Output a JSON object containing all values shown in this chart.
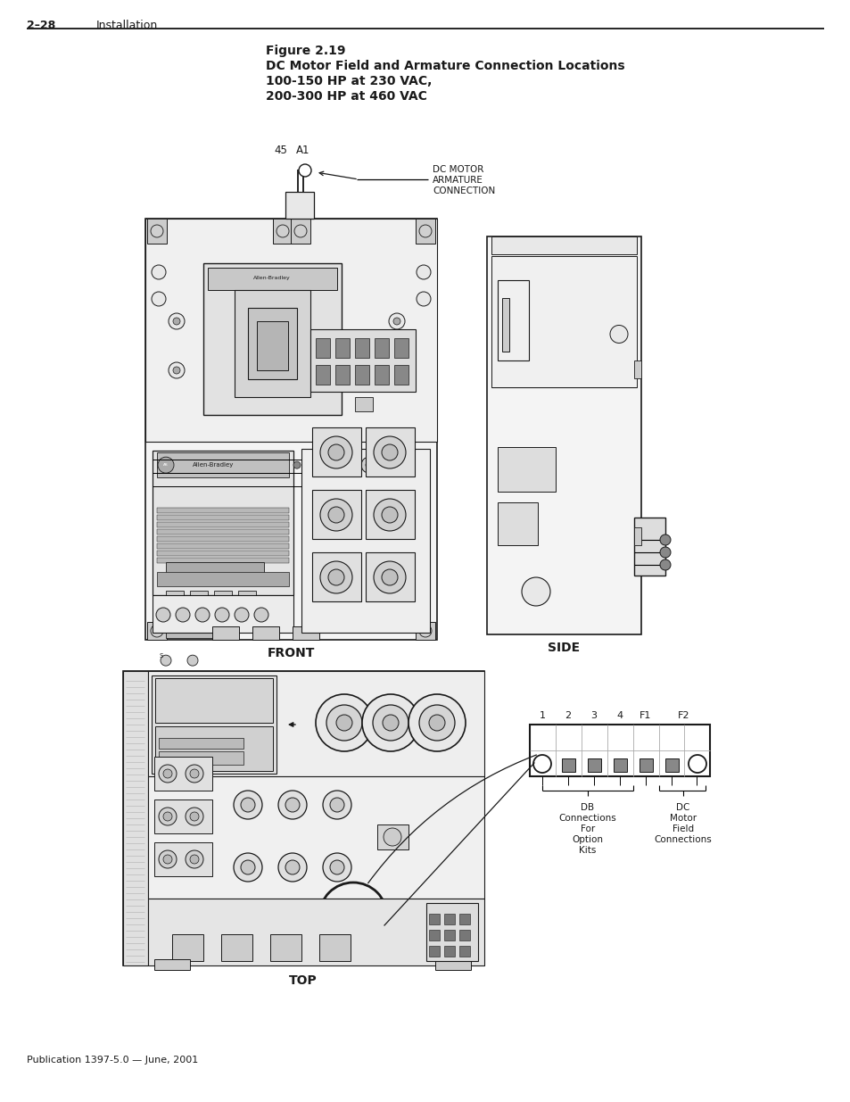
{
  "page_header_number": "2–28",
  "page_header_text": "Installation",
  "figure_title_line1": "Figure 2.19",
  "figure_title_line2": "DC Motor Field and Armature Connection Locations",
  "figure_title_line3": "100-150 HP at 230 VAC,",
  "figure_title_line4": "200-300 HP at 460 VAC",
  "front_label": "FRONT",
  "side_label": "SIDE",
  "top_label": "TOP",
  "label_45": "45",
  "label_A1": "A1",
  "dc_motor_line1": "DC MOTOR",
  "dc_motor_line2": "ARMATURE",
  "dc_motor_line3": "CONNECTION",
  "terminal_labels": [
    "1",
    "2",
    "3",
    "4",
    "F1",
    "F2"
  ],
  "db_connections_lines": [
    "DB",
    "Connections",
    "For",
    "Option",
    "Kits"
  ],
  "dc_motor_field_lines": [
    "DC",
    "Motor",
    "Field",
    "Connections"
  ],
  "footer_text": "Publication 1397-5.0 — June, 2001",
  "bg_color": "#ffffff",
  "line_color": "#1a1a1a",
  "text_color": "#1a1a1a",
  "light_gray": "#e8e8e8",
  "med_gray": "#cccccc",
  "dark_gray": "#888888"
}
